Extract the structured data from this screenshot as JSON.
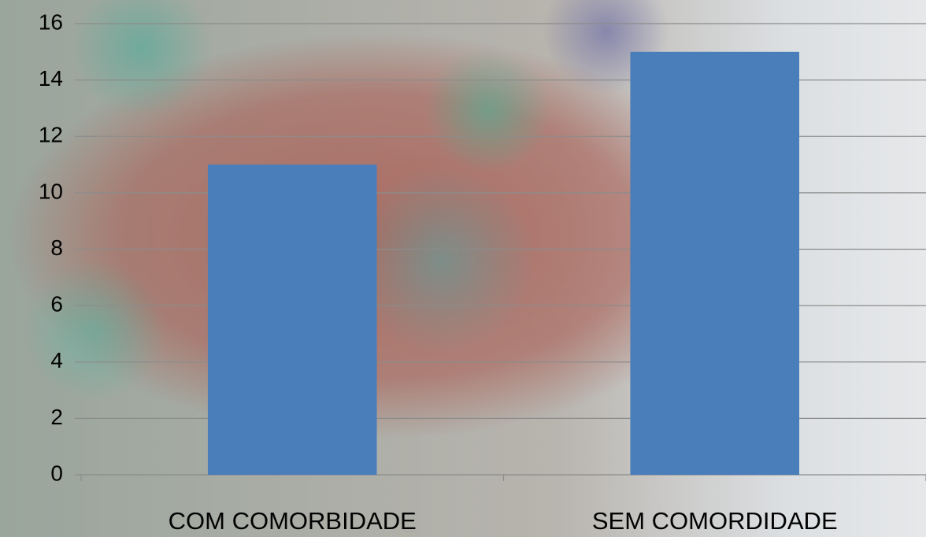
{
  "chart_data": {
    "type": "bar",
    "categories": [
      "COM COMORBIDADE",
      "SEM COMORDIDADE"
    ],
    "values": [
      11,
      15
    ],
    "color": "#4a7ebb",
    "ylim": [
      0,
      16
    ],
    "yticks": [
      0,
      2,
      4,
      6,
      8,
      10,
      12,
      14,
      16
    ],
    "grid": true
  }
}
